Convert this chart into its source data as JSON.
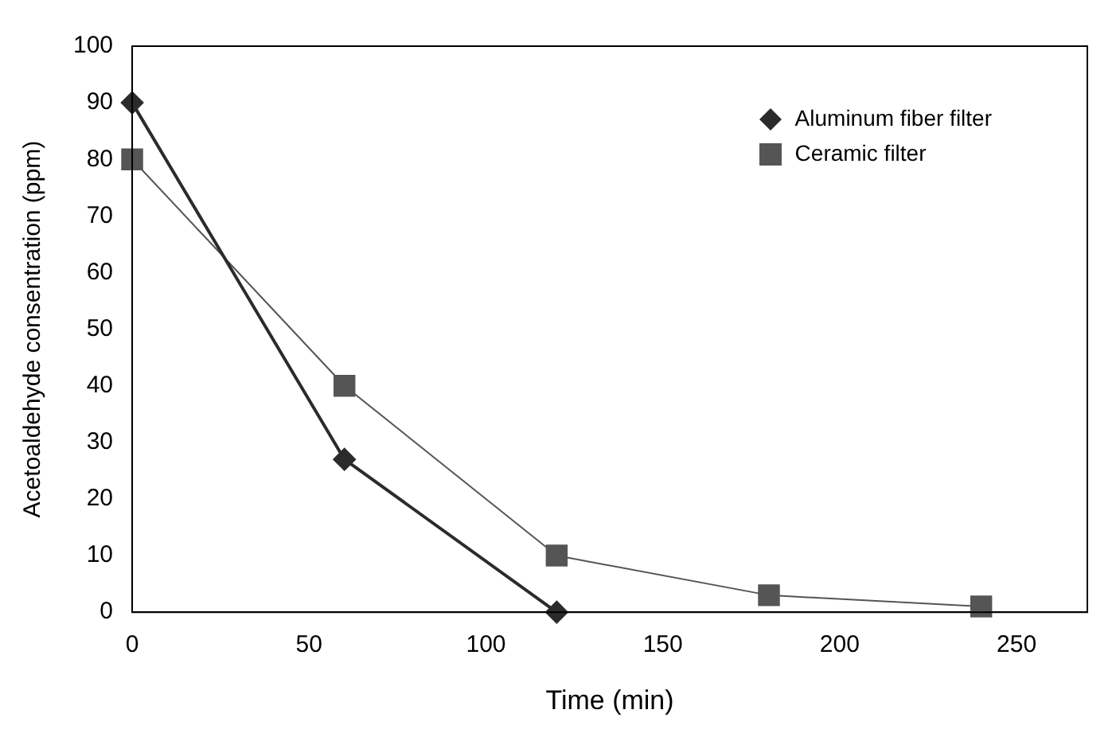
{
  "chart_data": {
    "type": "line",
    "xlabel": "Time (min)",
    "ylabel": "Acetoaldehyde consentration (ppm)",
    "xlim": [
      0,
      270
    ],
    "xticks": [
      0,
      50,
      100,
      150,
      200,
      250
    ],
    "ylim": [
      0,
      100
    ],
    "yticks": [
      0,
      10,
      20,
      30,
      40,
      50,
      60,
      70,
      80,
      90,
      100
    ],
    "grid": false,
    "legend": "top right",
    "series": [
      {
        "name": "Aluminum fiber filter",
        "color": "#2b2b2b",
        "marker": "diamond",
        "x": [
          0,
          60,
          120
        ],
        "values": [
          90,
          27,
          0
        ]
      },
      {
        "name": "Ceramic filter",
        "color": "#555555",
        "marker": "square",
        "x": [
          0,
          60,
          120,
          180,
          240
        ],
        "values": [
          80,
          40,
          10,
          3,
          1
        ]
      }
    ]
  }
}
